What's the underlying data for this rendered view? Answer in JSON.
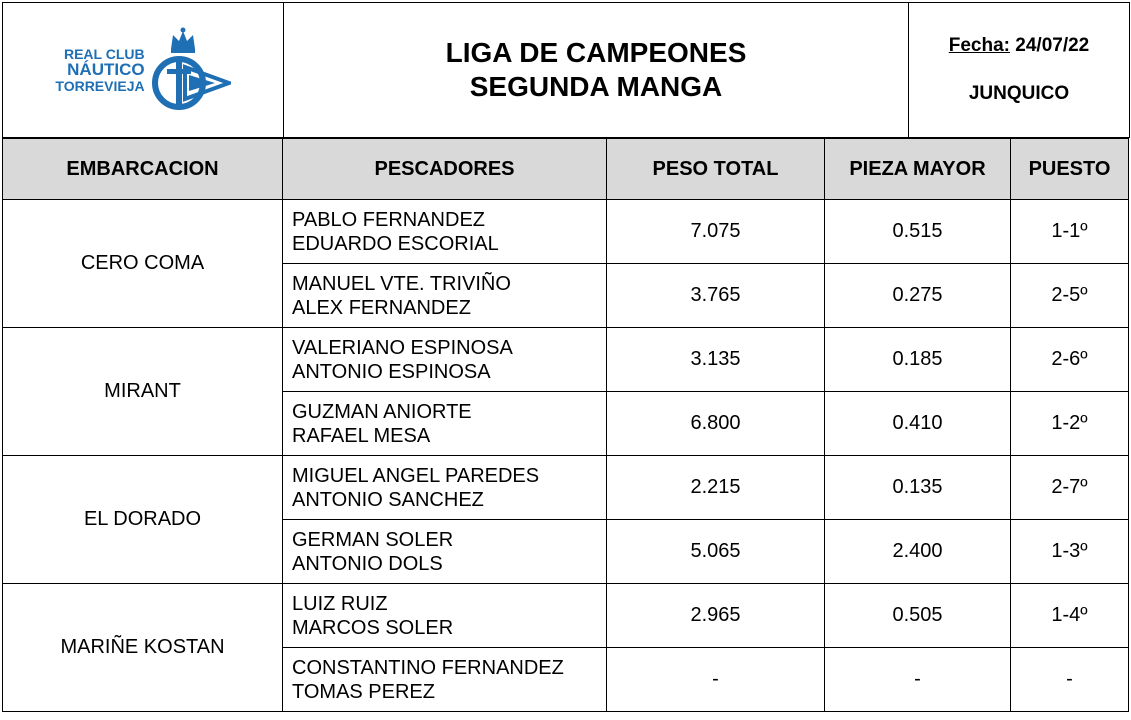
{
  "header": {
    "logo_lines": [
      "REAL CLUB",
      "NÁUTICO",
      "TORREVIEJA"
    ],
    "title_line1": "LIGA DE CAMPEONES",
    "title_line2": "SEGUNDA MANGA",
    "date_label": "Fecha:",
    "date_value": "24/07/22",
    "place": "JUNQUICO"
  },
  "colors": {
    "logo_blue": "#1f6fb5",
    "header_bg": "#d9d9d9"
  },
  "table": {
    "columns": [
      "EMBARCACION",
      "PESCADORES",
      "PESO TOTAL",
      "PIEZA MAYOR",
      "PUESTO"
    ],
    "boats": [
      {
        "name": "CERO COMA",
        "crews": [
          {
            "fisher1": "PABLO FERNANDEZ",
            "fisher2": "EDUARDO ESCORIAL",
            "peso_total": "7.075",
            "pieza_mayor": "0.515",
            "puesto": "1-1º"
          },
          {
            "fisher1": "MANUEL VTE. TRIVIÑO",
            "fisher2": "ALEX FERNANDEZ",
            "peso_total": "3.765",
            "pieza_mayor": "0.275",
            "puesto": "2-5º"
          }
        ]
      },
      {
        "name": "MIRANT",
        "crews": [
          {
            "fisher1": "VALERIANO ESPINOSA",
            "fisher2": "ANTONIO ESPINOSA",
            "peso_total": "3.135",
            "pieza_mayor": "0.185",
            "puesto": "2-6º"
          },
          {
            "fisher1": "GUZMAN ANIORTE",
            "fisher2": "RAFAEL MESA",
            "peso_total": "6.800",
            "pieza_mayor": "0.410",
            "puesto": "1-2º"
          }
        ]
      },
      {
        "name": "EL DORADO",
        "crews": [
          {
            "fisher1": "MIGUEL ANGEL PAREDES",
            "fisher2": "ANTONIO SANCHEZ",
            "peso_total": "2.215",
            "pieza_mayor": "0.135",
            "puesto": "2-7º"
          },
          {
            "fisher1": "GERMAN SOLER",
            "fisher2": "ANTONIO DOLS",
            "peso_total": "5.065",
            "pieza_mayor": "2.400",
            "puesto": "1-3º"
          }
        ]
      },
      {
        "name": "MARIÑE KOSTAN",
        "crews": [
          {
            "fisher1": "LUIZ RUIZ",
            "fisher2": "MARCOS SOLER",
            "peso_total": "2.965",
            "pieza_mayor": "0.505",
            "puesto": "1-4º"
          },
          {
            "fisher1": "CONSTANTINO FERNANDEZ",
            "fisher2": "TOMAS PEREZ",
            "peso_total": "-",
            "pieza_mayor": "-",
            "puesto": "-"
          }
        ]
      }
    ]
  }
}
